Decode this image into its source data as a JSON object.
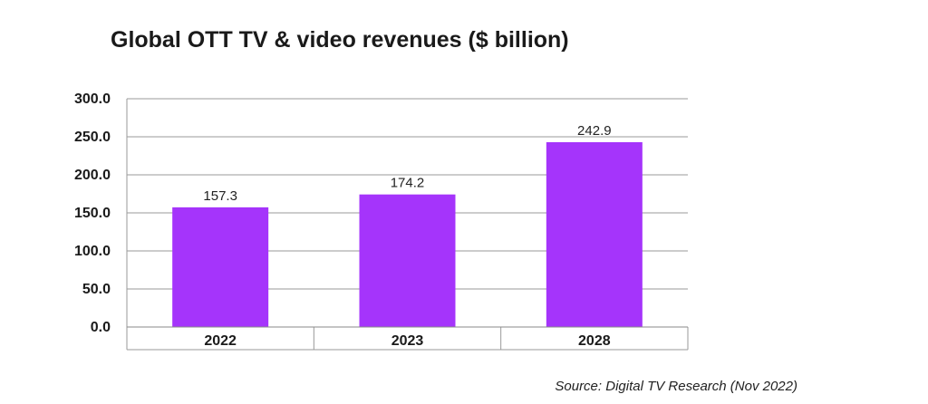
{
  "chart_data": {
    "type": "bar",
    "title": "Global OTT TV & video revenues ($ billion)",
    "categories": [
      "2022",
      "2023",
      "2028"
    ],
    "values": [
      157.3,
      174.2,
      242.9
    ],
    "value_labels": [
      "157.3",
      "174.2",
      "242.9"
    ],
    "ylim": [
      0,
      300
    ],
    "yticks": [
      "0.0",
      "50.0",
      "100.0",
      "150.0",
      "200.0",
      "250.0",
      "300.0"
    ],
    "xlabel": "",
    "ylabel": "",
    "grid": true,
    "legend": "none",
    "bar_color": "#a534fb",
    "source": "Source: Digital TV Research (Nov 2022)"
  }
}
